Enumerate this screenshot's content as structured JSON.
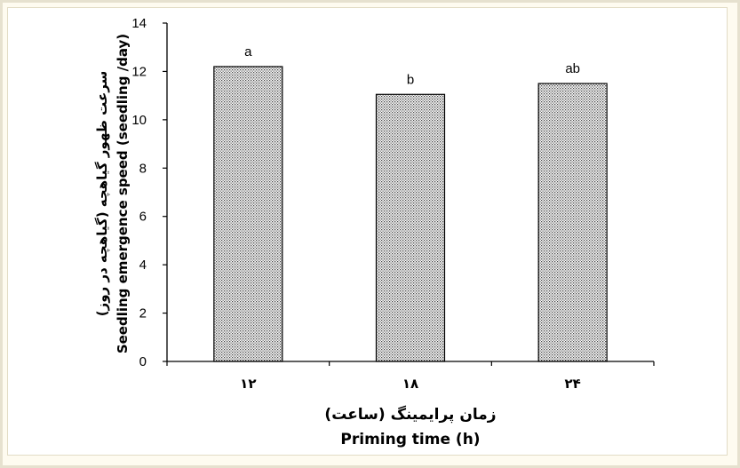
{
  "chart_data": {
    "type": "bar",
    "categories": [
      "۱۲",
      "۱۸",
      "۲۴"
    ],
    "values": [
      12.2,
      11.05,
      11.5
    ],
    "significance_labels": [
      "a",
      "b",
      "ab"
    ],
    "xlabel_fa": "زمان پرایمینگ (ساعت)",
    "xlabel": "Priming time (h)",
    "ylabel_fa": "سرعت ظهور گیاهچه (گیاهچه در روز)",
    "ylabel": "Seedling emergence speed (seedling /day)",
    "ylim": [
      0,
      14
    ],
    "yticks": [
      0,
      2,
      4,
      6,
      8,
      10,
      12,
      14
    ],
    "grid": false,
    "bar_fill": "dotted",
    "colors": {
      "bar_dots": "#333333",
      "bar_edge": "#000000",
      "background": "#ffffff"
    }
  }
}
